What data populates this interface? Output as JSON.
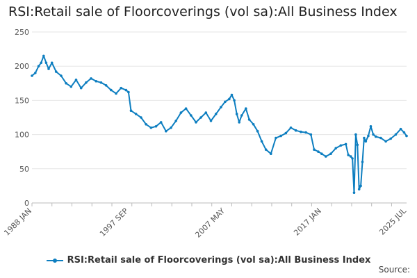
{
  "chart_data": {
    "type": "line",
    "title": "RSI:Retail sale of Floorcoverings (vol sa):All Business Index",
    "xlabel": "",
    "ylabel": "",
    "ylim": [
      0,
      250
    ],
    "y_ticks": [
      0,
      50,
      100,
      150,
      200,
      250
    ],
    "x_tick_labels": [
      "1988 JAN",
      "1997 SEP",
      "2007 MAY",
      "2017 JAN",
      "2025 JUL"
    ],
    "grid": true,
    "legend_position": "bottom",
    "series": [
      {
        "name": "RSI:Retail sale of Floorcoverings (vol sa):All Business Index",
        "color": "#0d7ec0",
        "points": [
          [
            "1988-01",
            186
          ],
          [
            "1988-05",
            190
          ],
          [
            "1988-09",
            200
          ],
          [
            "1988-12",
            205
          ],
          [
            "1989-03",
            215
          ],
          [
            "1989-06",
            205
          ],
          [
            "1989-09",
            196
          ],
          [
            "1990-01",
            205
          ],
          [
            "1990-06",
            192
          ],
          [
            "1990-12",
            186
          ],
          [
            "1991-06",
            175
          ],
          [
            "1991-12",
            170
          ],
          [
            "1992-06",
            180
          ],
          [
            "1992-12",
            168
          ],
          [
            "1993-06",
            176
          ],
          [
            "1993-12",
            182
          ],
          [
            "1994-06",
            178
          ],
          [
            "1994-12",
            176
          ],
          [
            "1995-06",
            172
          ],
          [
            "1995-12",
            165
          ],
          [
            "1996-06",
            160
          ],
          [
            "1996-12",
            168
          ],
          [
            "1997-06",
            165
          ],
          [
            "1997-09",
            162
          ],
          [
            "1997-12",
            135
          ],
          [
            "1998-06",
            130
          ],
          [
            "1998-12",
            125
          ],
          [
            "1999-06",
            115
          ],
          [
            "1999-12",
            110
          ],
          [
            "2000-06",
            112
          ],
          [
            "2000-12",
            118
          ],
          [
            "2001-06",
            105
          ],
          [
            "2001-12",
            110
          ],
          [
            "2002-06",
            120
          ],
          [
            "2002-12",
            132
          ],
          [
            "2003-06",
            138
          ],
          [
            "2003-12",
            128
          ],
          [
            "2004-06",
            118
          ],
          [
            "2004-12",
            125
          ],
          [
            "2005-06",
            132
          ],
          [
            "2005-12",
            120
          ],
          [
            "2006-06",
            130
          ],
          [
            "2006-12",
            140
          ],
          [
            "2007-05",
            148
          ],
          [
            "2007-10",
            152
          ],
          [
            "2008-01",
            158
          ],
          [
            "2008-04",
            150
          ],
          [
            "2008-07",
            130
          ],
          [
            "2008-10",
            118
          ],
          [
            "2009-01",
            128
          ],
          [
            "2009-06",
            138
          ],
          [
            "2009-10",
            122
          ],
          [
            "2010-03",
            115
          ],
          [
            "2010-08",
            105
          ],
          [
            "2011-01",
            90
          ],
          [
            "2011-06",
            78
          ],
          [
            "2011-12",
            72
          ],
          [
            "2012-06",
            95
          ],
          [
            "2012-12",
            98
          ],
          [
            "2013-06",
            102
          ],
          [
            "2013-12",
            110
          ],
          [
            "2014-06",
            106
          ],
          [
            "2014-12",
            104
          ],
          [
            "2015-06",
            103
          ],
          [
            "2015-12",
            100
          ],
          [
            "2016-04",
            78
          ],
          [
            "2016-09",
            75
          ],
          [
            "2017-01",
            72
          ],
          [
            "2017-06",
            68
          ],
          [
            "2017-12",
            72
          ],
          [
            "2018-06",
            80
          ],
          [
            "2018-12",
            84
          ],
          [
            "2019-06",
            86
          ],
          [
            "2019-09",
            70
          ],
          [
            "2019-12",
            68
          ],
          [
            "2020-02",
            65
          ],
          [
            "2020-04",
            15
          ],
          [
            "2020-06",
            100
          ],
          [
            "2020-08",
            85
          ],
          [
            "2020-10",
            20
          ],
          [
            "2020-12",
            25
          ],
          [
            "2021-02",
            60
          ],
          [
            "2021-04",
            95
          ],
          [
            "2021-06",
            90
          ],
          [
            "2021-09",
            98
          ],
          [
            "2021-12",
            112
          ],
          [
            "2022-03",
            100
          ],
          [
            "2022-06",
            97
          ],
          [
            "2022-12",
            95
          ],
          [
            "2023-06",
            90
          ],
          [
            "2023-12",
            94
          ],
          [
            "2024-06",
            100
          ],
          [
            "2024-12",
            108
          ],
          [
            "2025-04",
            103
          ],
          [
            "2025-07",
            98
          ]
        ]
      }
    ]
  },
  "legend": {
    "label": "RSI:Retail sale of Floorcoverings (vol sa):All Business Index"
  },
  "footer": {
    "source_label": "Source:"
  }
}
